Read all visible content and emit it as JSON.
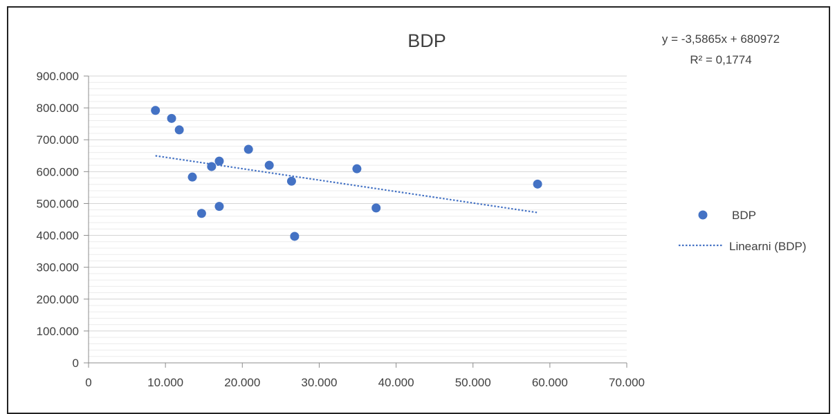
{
  "chart_data": {
    "type": "scatter",
    "title": "BDP",
    "xlabel": "",
    "ylabel": "",
    "xlim": [
      0,
      70000
    ],
    "ylim": [
      0,
      900000
    ],
    "x_ticks": [
      "0",
      "10.000",
      "20.000",
      "30.000",
      "40.000",
      "50.000",
      "60.000",
      "70.000"
    ],
    "y_ticks": [
      "0",
      "100.000",
      "200.000",
      "300.000",
      "400.000",
      "500.000",
      "600.000",
      "700.000",
      "800.000",
      "900.000"
    ],
    "grid": true,
    "legend_position": "right",
    "series": [
      {
        "name": "BDP",
        "color": "#4472C4",
        "points": [
          {
            "x": 8700,
            "y": 792000
          },
          {
            "x": 10800,
            "y": 767000
          },
          {
            "x": 11800,
            "y": 731000
          },
          {
            "x": 13500,
            "y": 583000
          },
          {
            "x": 14700,
            "y": 469000
          },
          {
            "x": 16000,
            "y": 616000
          },
          {
            "x": 17000,
            "y": 633000
          },
          {
            "x": 17000,
            "y": 491000
          },
          {
            "x": 20800,
            "y": 670000
          },
          {
            "x": 23500,
            "y": 620000
          },
          {
            "x": 26400,
            "y": 570000
          },
          {
            "x": 26800,
            "y": 397000
          },
          {
            "x": 34900,
            "y": 609000
          },
          {
            "x": 37400,
            "y": 486000
          },
          {
            "x": 58400,
            "y": 561000
          }
        ]
      }
    ],
    "trendline": {
      "name": "Linearni (BDP)",
      "type": "linear",
      "slope": -3.5865,
      "intercept": 680972,
      "x_range": [
        8700,
        58400
      ],
      "equation": "y = -3,5865x + 680972",
      "r_squared": "R² = 0,1774",
      "color": "#4472C4"
    },
    "legend": {
      "series_label": "BDP",
      "trend_label": "Linearni (BDP)"
    }
  }
}
